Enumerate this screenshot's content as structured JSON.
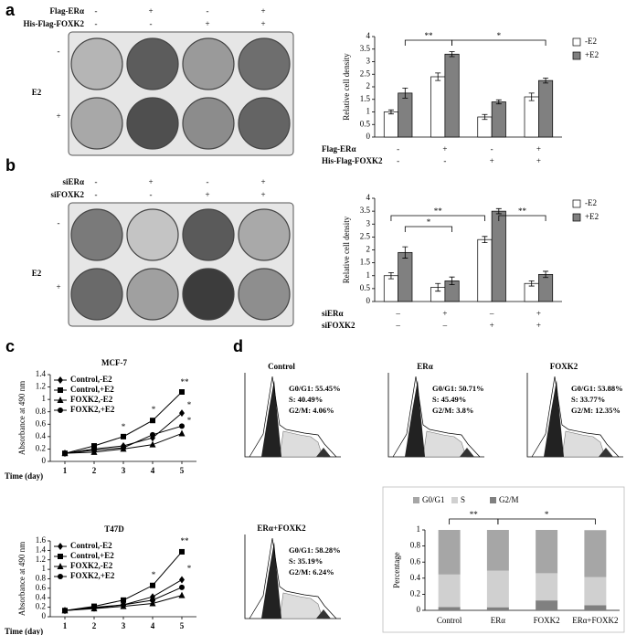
{
  "panels": [
    "a",
    "b",
    "c",
    "d"
  ],
  "plates": [
    {
      "rows": [
        {
          "label": "Flag-ERα",
          "signs": [
            "-",
            "+",
            "-",
            "+"
          ]
        },
        {
          "label": "His-Flag-FOXK2",
          "signs": [
            "-",
            "-",
            "+",
            "+"
          ]
        }
      ],
      "side_label": "E2",
      "row_signs": [
        "-",
        "+"
      ]
    },
    {
      "rows": [
        {
          "label": "siERα",
          "signs": [
            "-",
            "+",
            "-",
            "+"
          ]
        },
        {
          "label": "siFOXK2",
          "signs": [
            "-",
            "-",
            "+",
            "+"
          ]
        }
      ],
      "side_label": "E2",
      "row_signs": [
        "-",
        "+"
      ]
    }
  ],
  "flow": [
    {
      "title": "Control",
      "stats": [
        "G0/G1: 55.45%",
        "S: 40.49%",
        "G2/M: 4.06%"
      ]
    },
    {
      "title": "ERα",
      "stats": [
        "G0/G1: 50.71%",
        "S: 45.49%",
        "G2/M: 3.8%"
      ]
    },
    {
      "title": "FOXK2",
      "stats": [
        "G0/G1: 53.88%",
        "S: 33.77%",
        "G2/M: 12.35%"
      ]
    },
    {
      "title": "ERα+FOXK2",
      "stats": [
        "G0/G1: 58.28%",
        "S: 35.19%",
        "G2/M: 6.24%"
      ]
    }
  ],
  "chart_data": [
    {
      "type": "bar",
      "ylabel": "Relative cell density",
      "series": [
        {
          "name": "-E2",
          "color": "#ffffff",
          "values": [
            1.0,
            2.4,
            0.8,
            1.6
          ],
          "errors": [
            0.08,
            0.15,
            0.1,
            0.15
          ]
        },
        {
          "name": "+E2",
          "color": "#808080",
          "values": [
            1.75,
            3.3,
            1.4,
            2.25
          ],
          "errors": [
            0.2,
            0.1,
            0.08,
            0.1
          ]
        }
      ],
      "ylim": [
        0,
        4
      ],
      "yticks": [
        0,
        0.5,
        1,
        1.5,
        2,
        2.5,
        3,
        3.5,
        4
      ],
      "annotations": [
        "**",
        "*"
      ],
      "conditions": [
        {
          "label": "Flag-ERα",
          "signs": [
            "-",
            "+",
            "-",
            "+"
          ]
        },
        {
          "label": "His-Flag-FOXK2",
          "signs": [
            "-",
            "-",
            "+",
            "+"
          ]
        }
      ]
    },
    {
      "type": "bar",
      "ylabel": "Relative cell density",
      "series": [
        {
          "name": "-E2",
          "color": "#ffffff",
          "values": [
            1.0,
            0.55,
            2.4,
            0.7
          ],
          "errors": [
            0.12,
            0.15,
            0.12,
            0.1
          ]
        },
        {
          "name": "+E2",
          "color": "#808080",
          "values": [
            1.9,
            0.8,
            3.5,
            1.05
          ],
          "errors": [
            0.22,
            0.15,
            0.1,
            0.12
          ]
        }
      ],
      "ylim": [
        0,
        4
      ],
      "yticks": [
        0,
        0.5,
        1,
        1.5,
        2,
        2.5,
        3,
        3.5,
        4
      ],
      "annotations": [
        "*",
        "**",
        "**"
      ],
      "conditions": [
        {
          "label": "siERα",
          "signs": [
            "–",
            "+",
            "–",
            "+"
          ]
        },
        {
          "label": "siFOXK2",
          "signs": [
            "–",
            "–",
            "+",
            "+"
          ]
        }
      ]
    },
    {
      "type": "line",
      "title": "MCF-7",
      "ylabel": "Absorbance at 490 nm",
      "xlabel": "Time (day)",
      "x": [
        1,
        2,
        3,
        4,
        5
      ],
      "xlim": [
        0.5,
        5.5
      ],
      "xticks": [
        1,
        2,
        3,
        4,
        5
      ],
      "ylim": [
        0,
        1.4
      ],
      "yticks": [
        0,
        0.2,
        0.4,
        0.6,
        0.8,
        1,
        1.2,
        1.4
      ],
      "series": [
        {
          "name": "Control,-E2",
          "marker": "diamond",
          "color": "#000000",
          "values": [
            0.13,
            0.2,
            0.25,
            0.38,
            0.78
          ]
        },
        {
          "name": "Control,+E2",
          "marker": "square",
          "color": "#000000",
          "values": [
            0.13,
            0.25,
            0.4,
            0.66,
            1.12
          ]
        },
        {
          "name": "FOXK2,-E2",
          "marker": "triangle",
          "color": "#000000",
          "values": [
            0.13,
            0.15,
            0.2,
            0.27,
            0.45
          ]
        },
        {
          "name": "FOXK2,+E2",
          "marker": "circle",
          "color": "#000000",
          "values": [
            0.13,
            0.18,
            0.22,
            0.43,
            0.57
          ]
        }
      ],
      "annotations": [
        "*",
        "*",
        "**",
        "*",
        "*"
      ]
    },
    {
      "type": "line",
      "title": "T47D",
      "ylabel": "Absorbance at 490 nm",
      "xlabel": "Time (day)",
      "x": [
        1,
        2,
        3,
        4,
        5
      ],
      "xlim": [
        0.5,
        5.5
      ],
      "xticks": [
        1,
        2,
        3,
        4,
        5
      ],
      "ylim": [
        0,
        1.6
      ],
      "yticks": [
        0,
        0.2,
        0.4,
        0.6,
        0.8,
        1,
        1.2,
        1.4,
        1.6
      ],
      "series": [
        {
          "name": "Control,-E2",
          "marker": "diamond",
          "color": "#000000",
          "values": [
            0.13,
            0.18,
            0.25,
            0.42,
            0.78
          ]
        },
        {
          "name": "Control,+E2",
          "marker": "square",
          "color": "#000000",
          "values": [
            0.13,
            0.22,
            0.35,
            0.66,
            1.37
          ]
        },
        {
          "name": "FOXK2,-E2",
          "marker": "triangle",
          "color": "#000000",
          "values": [
            0.13,
            0.17,
            0.22,
            0.28,
            0.45
          ]
        },
        {
          "name": "FOXK2,+E2",
          "marker": "circle",
          "color": "#000000",
          "values": [
            0.13,
            0.2,
            0.25,
            0.35,
            0.62
          ]
        }
      ],
      "annotations": [
        "*",
        "**",
        "*"
      ]
    },
    {
      "type": "stacked_bar",
      "ylabel": "Percentage",
      "categories": [
        "Control",
        "ERα",
        "FOXK2",
        "ERα+FOXK2"
      ],
      "series": [
        {
          "name": "G0/G1",
          "color": "#a6a6a6",
          "values": [
            0.5545,
            0.5071,
            0.5388,
            0.5828
          ]
        },
        {
          "name": "S",
          "color": "#d0d0d0",
          "values": [
            0.4049,
            0.4549,
            0.3377,
            0.3519
          ]
        },
        {
          "name": "G2/M",
          "color": "#808080",
          "values": [
            0.0406,
            0.038,
            0.1235,
            0.0624
          ]
        }
      ],
      "ylim": [
        0,
        1
      ],
      "yticks": [
        0,
        0.2,
        0.4,
        0.6,
        0.8,
        1
      ],
      "annotations": [
        "**",
        "*"
      ],
      "legend": "top"
    }
  ]
}
